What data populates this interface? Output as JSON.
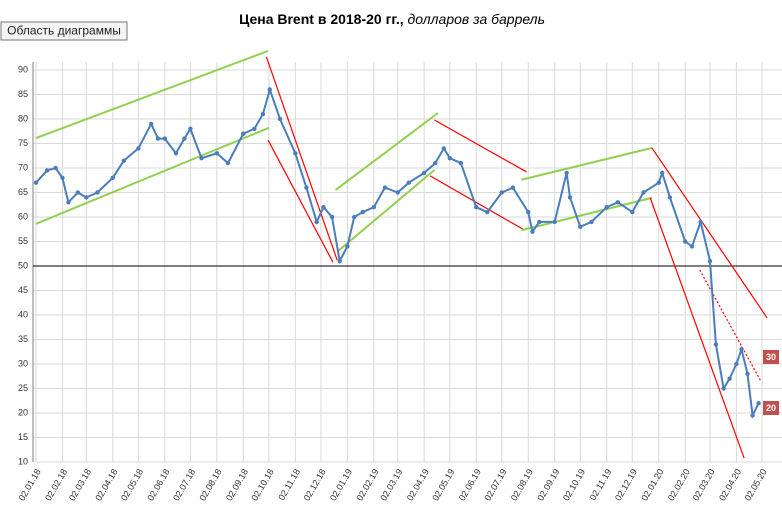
{
  "chart_data": {
    "type": "line",
    "title": "Цена Brent в 2018-20 гг.,",
    "subtitle": "долларов за баррель",
    "tooltip": "Область диаграммы",
    "series": [
      {
        "name": "Brent",
        "color": "#4a7ebb",
        "x": [
          "02.01.18",
          "15.01.18",
          "25.01.18",
          "02.02.18",
          "09.02.18",
          "20.02.18",
          "02.03.18",
          "15.03.18",
          "02.04.18",
          "15.04.18",
          "02.05.18",
          "17.05.18",
          "25.05.18",
          "02.06.18",
          "15.06.18",
          "25.06.18",
          "02.07.18",
          "15.07.18",
          "02.08.18",
          "15.08.18",
          "02.09.18",
          "15.09.18",
          "25.09.18",
          "03.10.18",
          "15.10.18",
          "02.11.18",
          "15.11.18",
          "27.11.18",
          "05.12.18",
          "15.12.18",
          "24.12.18",
          "02.01.19",
          "10.01.19",
          "20.01.19",
          "02.02.19",
          "15.02.19",
          "02.03.19",
          "15.03.19",
          "02.04.19",
          "15.04.19",
          "25.04.19",
          "02.05.19",
          "15.05.19",
          "02.06.19",
          "15.06.19",
          "02.07.19",
          "15.07.19",
          "02.08.19",
          "07.08.19",
          "15.08.19",
          "02.09.19",
          "16.09.19",
          "20.09.19",
          "02.10.19",
          "15.10.19",
          "02.11.19",
          "15.11.19",
          "02.12.19",
          "15.12.19",
          "02.01.20",
          "06.01.20",
          "15.01.20",
          "02.02.20",
          "10.02.20",
          "20.02.20",
          "02.03.20",
          "09.03.20",
          "18.03.20",
          "25.03.20",
          "02.04.20",
          "08.04.20",
          "15.04.20",
          "21.04.20",
          "28.04.20"
        ],
        "values": [
          67,
          69.5,
          70,
          68,
          63,
          65,
          64,
          65,
          68,
          71.5,
          74,
          79,
          76,
          76,
          73,
          76,
          78,
          72,
          73,
          71,
          77,
          78,
          81,
          86,
          80,
          73,
          66,
          59,
          62,
          60,
          51,
          54,
          60,
          61,
          62,
          66,
          65,
          67,
          69,
          71,
          74,
          72,
          71,
          62,
          61,
          65,
          66,
          61,
          57,
          59,
          59,
          69,
          64,
          58,
          59,
          62,
          63,
          61,
          65,
          67,
          69,
          64,
          55,
          54,
          59,
          51,
          34,
          25,
          27,
          30,
          33,
          28,
          19.5,
          22
        ]
      }
    ],
    "trend_lines": [
      {
        "color": "#92d050",
        "x": [
          "02.01.18",
          "01.10.18"
        ],
        "values": [
          76.1,
          93.9
        ]
      },
      {
        "color": "#92d050",
        "x": [
          "02.01.18",
          "02.10.18"
        ],
        "values": [
          58.6,
          78.2
        ]
      },
      {
        "color": "#ff0000",
        "x": [
          "29.09.18",
          "21.12.18"
        ],
        "values": [
          92.7,
          51.2
        ]
      },
      {
        "color": "#ff0000",
        "x": [
          "01.10.18",
          "16.12.18"
        ],
        "values": [
          75.7,
          50.8
        ]
      },
      {
        "color": "#92d050",
        "x": [
          "19.12.18",
          "18.04.19"
        ],
        "values": [
          65.5,
          81.2
        ]
      },
      {
        "color": "#92d050",
        "x": [
          "21.12.18",
          "14.04.19"
        ],
        "values": [
          52.9,
          69.6
        ]
      },
      {
        "color": "#ff0000",
        "x": [
          "14.04.19",
          "31.07.19"
        ],
        "values": [
          79.8,
          69.2
        ]
      },
      {
        "color": "#ff0000",
        "x": [
          "09.04.19",
          "29.07.19"
        ],
        "values": [
          68.4,
          57.3
        ]
      },
      {
        "color": "#92d050",
        "x": [
          "25.07.19",
          "25.12.19"
        ],
        "values": [
          67.6,
          74.1
        ]
      },
      {
        "color": "#92d050",
        "x": [
          "25.07.19",
          "25.12.19"
        ],
        "values": [
          57.3,
          63.9
        ]
      },
      {
        "color": "#ff0000",
        "x": [
          "25.12.19",
          "08.05.20"
        ],
        "values": [
          74.1,
          39.4
        ]
      },
      {
        "color": "#ff0000",
        "x": [
          "23.12.19",
          "11.04.20"
        ],
        "values": [
          63.9,
          10.8
        ]
      },
      {
        "color": "#ff0000",
        "dashed": true,
        "x": [
          "19.02.20",
          "30.04.20"
        ],
        "values": [
          49.2,
          26.7
        ]
      }
    ],
    "hline": 50,
    "badges": [
      "30",
      "20"
    ],
    "xlim": [
      "02.01.18",
      "02.05.20"
    ],
    "xticks": [
      "02.01.18",
      "02.02.18",
      "02.03.18",
      "02.04.18",
      "02.05.18",
      "02.06.18",
      "02.07.18",
      "02.08.18",
      "02.09.18",
      "02.10.18",
      "02.11.18",
      "02.12.18",
      "02.01.19",
      "02.02.19",
      "02.03.19",
      "02.04.19",
      "02.05.19",
      "02.06.19",
      "02.07.19",
      "02.08.19",
      "02.09.19",
      "02.10.19",
      "02.11.19",
      "02.12.19",
      "02.01.20",
      "02.02.20",
      "02.03.20",
      "02.04.20",
      "02.05.20"
    ],
    "ylim": [
      10,
      90
    ],
    "yticks": [
      10,
      15,
      20,
      25,
      30,
      35,
      40,
      45,
      50,
      55,
      60,
      65,
      70,
      75,
      80,
      85,
      90
    ],
    "grid": true
  }
}
